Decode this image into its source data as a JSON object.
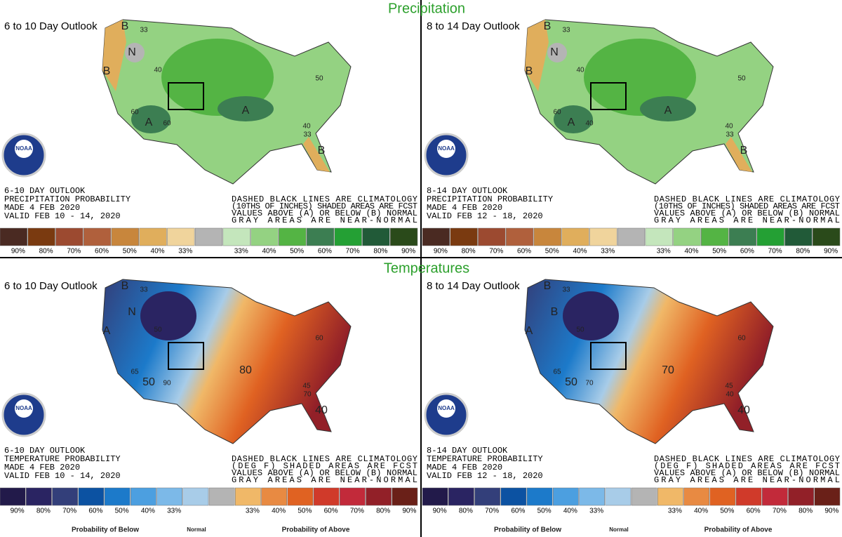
{
  "header": {
    "precipitation": "Precipitation",
    "temperatures": "Temperatures"
  },
  "panels": [
    {
      "title": "6 to 10 Day Outlook",
      "kind": "precip",
      "lines": [
        "6-10 DAY OUTLOOK",
        "PRECIPITATION PROBABILITY",
        "MADE  4 FEB 2020",
        "VALID  FEB 10 - 14, 2020"
      ],
      "notes": [
        "DASHED BLACK LINES ARE CLIMATOLOGY",
        "(10THS OF INCHES) SHADED AREAS ARE FCST",
        "VALUES ABOVE (A) OR BELOW (B) NORMAL",
        "GRAY AREAS ARE NEAR-NORMAL"
      ],
      "logo": "NOAA",
      "map_labels": [
        "B",
        "N",
        "B",
        "A",
        "A",
        "B",
        "33",
        "40",
        "60",
        "60",
        "50",
        "40",
        "33"
      ],
      "legend": {
        "colors": [
          "#4a2a22",
          "#7a3a10",
          "#9c4a30",
          "#b0603c",
          "#c8863c",
          "#e0ae5c",
          "#f0d49c",
          "#b4b4b4",
          "#c4e6bc",
          "#94d282",
          "#54b444",
          "#3c7e52",
          "#24a034",
          "#215a38",
          "#2a4a1a"
        ],
        "labels": [
          "90%",
          "80%",
          "70%",
          "60%",
          "50%",
          "40%",
          "33%",
          "33%",
          "40%",
          "50%",
          "60%",
          "70%",
          "80%",
          "90%"
        ]
      }
    },
    {
      "title": "8 to 14 Day Outlook",
      "kind": "precip",
      "lines": [
        "8-14 DAY OUTLOOK",
        "PRECIPITATION PROBABILITY",
        "MADE  4 FEB 2020",
        "VALID  FEB 12 - 18, 2020"
      ],
      "notes": [
        "DASHED BLACK LINES ARE CLIMATOLOGY",
        "(10THS OF INCHES) SHADED AREAS ARE FCST",
        "VALUES ABOVE (A) OR BELOW (B) NORMAL",
        "GRAY AREAS ARE NEAR-NORMAL"
      ],
      "logo": "NOAA",
      "map_labels": [
        "B",
        "N",
        "B",
        "A",
        "A",
        "B",
        "33",
        "40",
        "60",
        "40",
        "50",
        "40",
        "33"
      ],
      "legend": {
        "colors": [
          "#4a2a22",
          "#7a3a10",
          "#9c4a30",
          "#b0603c",
          "#c8863c",
          "#e0ae5c",
          "#f0d49c",
          "#b4b4b4",
          "#c4e6bc",
          "#94d282",
          "#54b444",
          "#3c7e52",
          "#24a034",
          "#215a38",
          "#2a4a1a"
        ],
        "labels": [
          "90%",
          "80%",
          "70%",
          "60%",
          "50%",
          "40%",
          "33%",
          "33%",
          "40%",
          "50%",
          "60%",
          "70%",
          "80%",
          "90%"
        ]
      }
    },
    {
      "title": "6 to 10 Day Outlook",
      "kind": "temp",
      "lines": [
        "6-10 DAY OUTLOOK",
        "TEMPERATURE PROBABILITY",
        "MADE  4 FEB 2020",
        "VALID  FEB 10 - 14, 2020"
      ],
      "notes": [
        "DASHED BLACK LINES ARE CLIMATOLOGY",
        "(DEG F) SHADED AREAS ARE FCST",
        "VALUES ABOVE (A) OR BELOW (B) NORMAL",
        "GRAY AREAS ARE NEAR-NORMAL"
      ],
      "logo": "NOAA",
      "map_labels": [
        "B",
        "N",
        "A",
        "50",
        "80",
        "40",
        "33",
        "50",
        "65",
        "90",
        "60",
        "45",
        "70"
      ],
      "legend": {
        "colors": [
          "#221a4a",
          "#2a2462",
          "#333f7a",
          "#0c52a2",
          "#1c7aca",
          "#4c9fe0",
          "#7cb9e8",
          "#a8cce8",
          "#b4b4b4",
          "#f0b868",
          "#e88a42",
          "#e06222",
          "#d03a2a",
          "#c22a3a",
          "#922028",
          "#6a2018"
        ],
        "labels": [
          "90%",
          "80%",
          "70%",
          "60%",
          "50%",
          "40%",
          "33%",
          "33%",
          "40%",
          "50%",
          "60%",
          "70%",
          "80%",
          "90%"
        ]
      },
      "footer": [
        "Probability of Below",
        "Normal",
        "Probability of Above"
      ]
    },
    {
      "title": "8 to 14 Day Outlook",
      "kind": "temp",
      "lines": [
        "8-14 DAY OUTLOOK",
        "TEMPERATURE PROBABILITY",
        "MADE  4 FEB 2020",
        "VALID  FEB 12 - 18, 2020"
      ],
      "notes": [
        "DASHED BLACK LINES ARE CLIMATOLOGY",
        "(DEG F) SHADED AREAS ARE FCST",
        "VALUES ABOVE (A) OR BELOW (B) NORMAL",
        "GRAY AREAS ARE NEAR-NORMAL"
      ],
      "logo": "NOAA",
      "map_labels": [
        "B",
        "B",
        "A",
        "50",
        "70",
        "40",
        "33",
        "50",
        "65",
        "70",
        "60",
        "45",
        "40"
      ],
      "legend": {
        "colors": [
          "#221a4a",
          "#2a2462",
          "#333f7a",
          "#0c52a2",
          "#1c7aca",
          "#4c9fe0",
          "#7cb9e8",
          "#a8cce8",
          "#b4b4b4",
          "#f0b868",
          "#e88a42",
          "#e06222",
          "#d03a2a",
          "#c22a3a",
          "#922028",
          "#6a2018"
        ],
        "labels": [
          "90%",
          "80%",
          "70%",
          "60%",
          "50%",
          "40%",
          "33%",
          "33%",
          "40%",
          "50%",
          "60%",
          "70%",
          "80%",
          "90%"
        ]
      },
      "footer": [
        "Probability of Below",
        "Normal",
        "Probability of Above"
      ]
    }
  ]
}
